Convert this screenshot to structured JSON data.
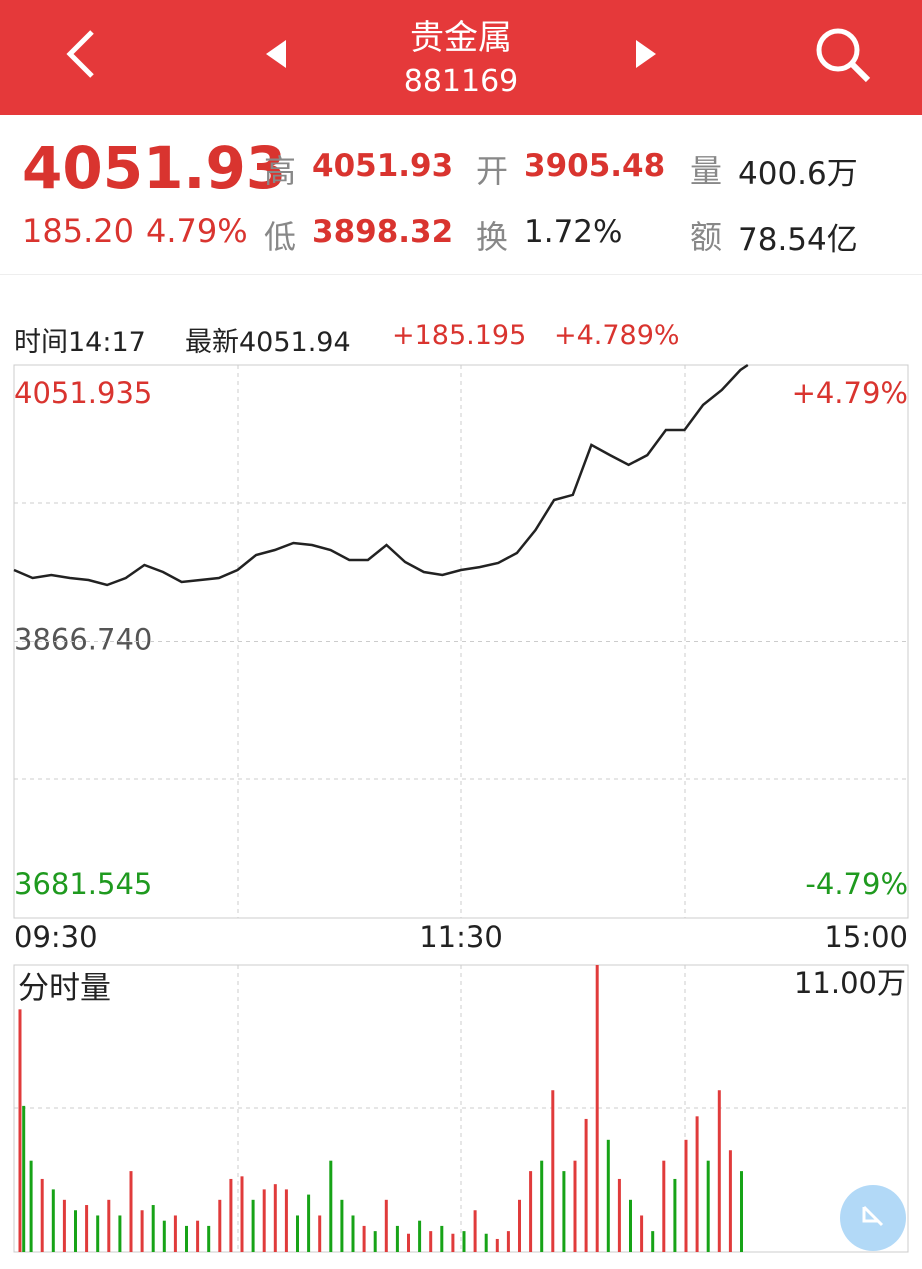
{
  "header": {
    "title": "贵金属",
    "code": "881169"
  },
  "quote": {
    "price": "4051.93",
    "change": "185.20",
    "change_pct": "4.79%",
    "high_label": "高",
    "high": "4051.93",
    "low_label": "低",
    "low": "3898.32",
    "open_label": "开",
    "open": "3905.48",
    "turnover_label": "换",
    "turnover": "1.72%",
    "volume_label": "量",
    "volume": "400.6万",
    "amount_label": "额",
    "amount": "78.54亿"
  },
  "info": {
    "time": "时间14:17",
    "latest": "最新4051.94",
    "change": "+185.195",
    "change_pct": "+4.789%"
  },
  "chart_data": [
    {
      "type": "line",
      "x": [
        0,
        5,
        10,
        15,
        20,
        25,
        30,
        35,
        40,
        45,
        50,
        55,
        60,
        65,
        70,
        75,
        80,
        85,
        90,
        95,
        100,
        105,
        110,
        115,
        120,
        125,
        130,
        135,
        140,
        145,
        150,
        155,
        160,
        165,
        170,
        175,
        180,
        185,
        190,
        195,
        197
      ],
      "series": [
        {
          "color": "#222222",
          "values": [
            3914.6,
            3909.3,
            3911.3,
            3909.3,
            3907.9,
            3904.6,
            3909.3,
            3918.0,
            3913.3,
            3906.6,
            3907.9,
            3909.3,
            3914.6,
            3924.7,
            3928.0,
            3932.7,
            3931.4,
            3928.0,
            3921.3,
            3921.3,
            3931.4,
            3920.0,
            3913.3,
            3911.3,
            3914.6,
            3916.6,
            3919.3,
            3926.0,
            3941.4,
            3961.5,
            3964.9,
            3998.4,
            3991.6,
            3985.0,
            3991.6,
            4008.4,
            4008.4,
            4025.2,
            4035.2,
            4048.6,
            4051.94
          ]
        }
      ],
      "xlim": [
        0,
        240
      ],
      "xticks": [
        {
          "value": 0,
          "label": "09:30"
        },
        {
          "value": 120,
          "label": "11:30"
        },
        {
          "value": 240,
          "label": "15:00"
        }
      ],
      "ylim": [
        3681.545,
        4051.935
      ],
      "yticks": [
        {
          "value": 4051.935,
          "label": "4051.935"
        },
        {
          "value": 3866.74,
          "label": "3866.740"
        },
        {
          "value": 3681.545,
          "label": "3681.545"
        }
      ],
      "y2lim": [
        -4.79,
        4.79
      ],
      "y2ticks": [
        {
          "value": 4.79,
          "label": "+4.79%"
        },
        {
          "value": -4.79,
          "label": "-4.79%"
        }
      ],
      "grid": true
    },
    {
      "type": "bar",
      "title": "分时量",
      "x": [
        0,
        1,
        3,
        6,
        9,
        12,
        15,
        18,
        21,
        24,
        27,
        30,
        33,
        36,
        39,
        42,
        45,
        48,
        51,
        54,
        57,
        60,
        63,
        66,
        69,
        72,
        75,
        78,
        81,
        84,
        87,
        90,
        93,
        96,
        99,
        102,
        105,
        108,
        111,
        114,
        117,
        120,
        123,
        126,
        129,
        132,
        135,
        138,
        141,
        144,
        147,
        150,
        153,
        156,
        159,
        162,
        165,
        168,
        171,
        174,
        177,
        180,
        183,
        186,
        189,
        192,
        195
      ],
      "values": [
        9.3,
        5.6,
        3.5,
        2.8,
        2.4,
        2.0,
        1.6,
        1.8,
        1.4,
        2.0,
        1.4,
        3.1,
        1.6,
        1.8,
        1.2,
        1.4,
        1.0,
        1.2,
        1.0,
        2.0,
        2.8,
        2.9,
        2.0,
        2.4,
        2.6,
        2.4,
        1.4,
        2.2,
        1.4,
        3.5,
        2.0,
        1.4,
        1.0,
        0.8,
        2.0,
        1.0,
        0.7,
        1.2,
        0.8,
        1.0,
        0.7,
        0.8,
        1.6,
        0.7,
        0.5,
        0.8,
        2.0,
        3.1,
        3.5,
        6.2,
        3.1,
        3.5,
        5.1,
        11.0,
        4.3,
        2.8,
        2.0,
        1.4,
        0.8,
        3.5,
        2.8,
        4.3,
        5.2,
        3.5,
        6.2,
        3.9,
        3.1
      ],
      "colors": [
        "#e03b3b",
        "#17a317",
        "#17a317",
        "#e03b3b",
        "#17a317",
        "#e03b3b",
        "#17a317",
        "#e03b3b",
        "#17a317",
        "#e03b3b",
        "#17a317",
        "#e03b3b",
        "#e03b3b",
        "#17a317",
        "#17a317",
        "#e03b3b",
        "#17a317",
        "#e03b3b",
        "#17a317",
        "#e03b3b",
        "#e03b3b",
        "#e03b3b",
        "#17a317",
        "#e03b3b",
        "#e03b3b",
        "#e03b3b",
        "#17a317",
        "#17a317",
        "#e03b3b",
        "#17a317",
        "#17a317",
        "#17a317",
        "#e03b3b",
        "#17a317",
        "#e03b3b",
        "#17a317",
        "#e03b3b",
        "#17a317",
        "#e03b3b",
        "#17a317",
        "#e03b3b",
        "#17a317",
        "#e03b3b",
        "#17a317",
        "#e03b3b",
        "#e03b3b",
        "#e03b3b",
        "#e03b3b",
        "#17a317",
        "#e03b3b",
        "#17a317",
        "#e03b3b",
        "#e03b3b",
        "#e03b3b",
        "#17a317",
        "#e03b3b",
        "#17a317",
        "#e03b3b",
        "#17a317",
        "#e03b3b",
        "#17a317",
        "#e03b3b",
        "#e03b3b",
        "#17a317",
        "#e03b3b",
        "#e03b3b",
        "#17a317"
      ],
      "xlim": [
        0,
        240
      ],
      "ylim": [
        0,
        11
      ],
      "yticks": [
        {
          "value": 11,
          "label": "11.00万"
        }
      ],
      "grid": true
    }
  ]
}
